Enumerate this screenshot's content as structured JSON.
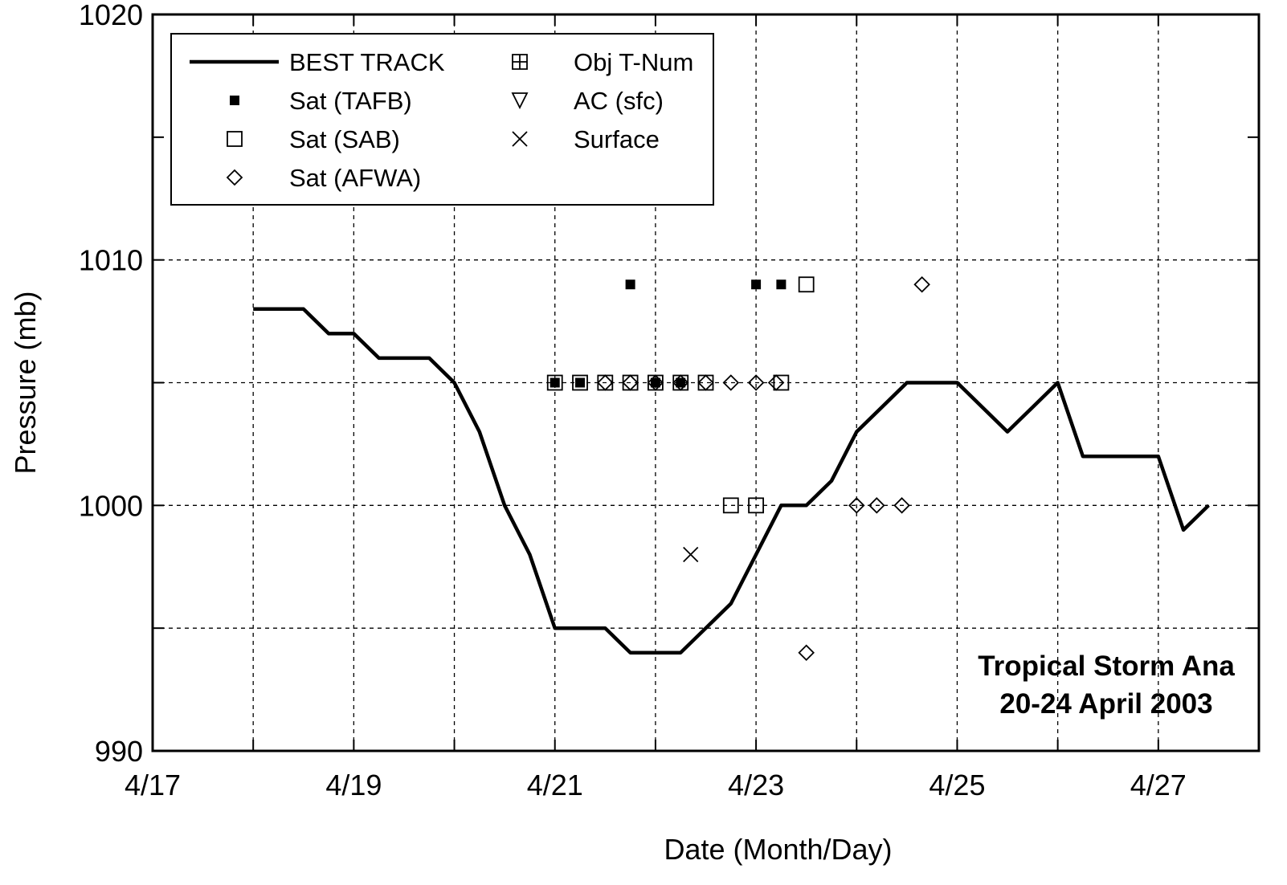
{
  "chart_data": {
    "type": "line",
    "xlabel": "Date (Month/Day)",
    "ylabel": "Pressure (mb)",
    "xlim": [
      17,
      28
    ],
    "ylim": [
      990,
      1020
    ],
    "x_major_ticks": [
      17,
      19,
      21,
      23,
      25,
      27
    ],
    "x_tick_labels": [
      "4/17",
      "4/19",
      "4/21",
      "4/23",
      "4/25",
      "4/27"
    ],
    "x_grid_ticks": [
      18,
      19,
      20,
      21,
      22,
      23,
      24,
      25,
      26,
      27
    ],
    "y_ticks": [
      990,
      1000,
      1010,
      1020
    ],
    "y_tick_labels": [
      "990",
      "1000",
      "1010",
      "1020"
    ],
    "y_grid_ticks": [
      995,
      1000,
      1005,
      1010
    ],
    "grid": true,
    "legend_position": "top-left",
    "legend": [
      {
        "label": "BEST TRACK",
        "marker": "line"
      },
      {
        "label": "Sat (TAFB)",
        "marker": "filled-square"
      },
      {
        "label": "Sat (SAB)",
        "marker": "open-square"
      },
      {
        "label": "Sat (AFWA)",
        "marker": "open-diamond"
      },
      {
        "label": "Obj T-Num",
        "marker": "crossed-square"
      },
      {
        "label": "AC (sfc)",
        "marker": "down-triangle"
      },
      {
        "label": "Surface",
        "marker": "x-cross"
      }
    ],
    "annotation": [
      "Tropical Storm Ana",
      "20-24 April 2003"
    ],
    "series": [
      {
        "name": "BEST TRACK",
        "marker": "line",
        "x": [
          18.0,
          18.5,
          18.75,
          19.0,
          19.25,
          19.5,
          19.75,
          20.0,
          20.25,
          20.5,
          20.75,
          21.0,
          21.25,
          21.5,
          21.75,
          22.0,
          22.25,
          22.5,
          22.75,
          23.0,
          23.25,
          23.5,
          23.75,
          24.0,
          24.25,
          24.5,
          24.75,
          25.0,
          25.25,
          25.5,
          25.75,
          26.0,
          26.25,
          26.5,
          26.75,
          27.0,
          27.25,
          27.5
        ],
        "y": [
          1008,
          1008,
          1007,
          1007,
          1006,
          1006,
          1006,
          1005,
          1003,
          1000,
          998,
          995,
          995,
          995,
          994,
          994,
          994,
          995,
          996,
          998,
          1000,
          1000,
          1001,
          1003,
          1004,
          1005,
          1005,
          1005,
          1004,
          1003,
          1004,
          1005,
          1002,
          1002,
          1002,
          1002,
          999,
          1000
        ]
      },
      {
        "name": "Sat (TAFB)",
        "marker": "filled-square",
        "x": [
          21.0,
          21.25,
          21.75,
          22.0,
          22.25,
          23.0,
          23.25
        ],
        "y": [
          1005,
          1005,
          1009,
          1005,
          1005,
          1009,
          1009
        ]
      },
      {
        "name": "Sat (SAB)",
        "marker": "open-square",
        "x": [
          21.0,
          21.25,
          21.5,
          21.75,
          22.0,
          22.25,
          22.5,
          22.75,
          23.0,
          23.25,
          23.5
        ],
        "y": [
          1005,
          1005,
          1005,
          1005,
          1005,
          1005,
          1005,
          1000,
          1000,
          1005,
          1009
        ]
      },
      {
        "name": "Sat (AFWA)",
        "marker": "open-diamond",
        "x": [
          21.5,
          21.75,
          22.0,
          22.25,
          22.5,
          22.75,
          23.0,
          23.2,
          23.5,
          24.0,
          24.2,
          24.45,
          24.65
        ],
        "y": [
          1005,
          1005,
          1005,
          1005,
          1005,
          1005,
          1005,
          1005,
          994,
          1000,
          1000,
          1000,
          1009
        ]
      },
      {
        "name": "Surface",
        "marker": "x-cross",
        "x": [
          22.35
        ],
        "y": [
          998
        ]
      }
    ]
  }
}
